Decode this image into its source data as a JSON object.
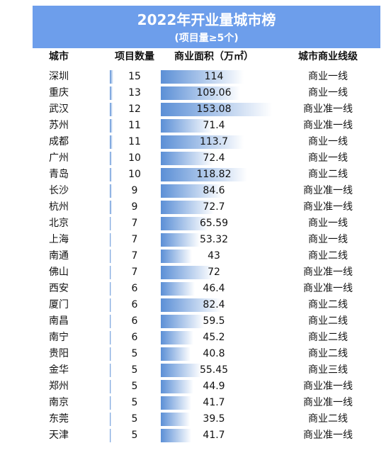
{
  "header": {
    "title": "2022年开业量城市榜",
    "subtitle": "(项目量≥5个)"
  },
  "table": {
    "columns": [
      "城市",
      "项目数量",
      "商业面积（万㎡）",
      "城市商业线级"
    ],
    "rows": [
      [
        "深圳",
        15,
        114,
        "商业一线"
      ],
      [
        "重庆",
        13,
        109.06,
        "商业一线"
      ],
      [
        "武汉",
        12,
        153.08,
        "商业准一线"
      ],
      [
        "苏州",
        11,
        71.4,
        "商业准一线"
      ],
      [
        "成都",
        11,
        113.7,
        "商业一线"
      ],
      [
        "广州",
        10,
        72.4,
        "商业一线"
      ],
      [
        "青岛",
        10,
        118.82,
        "商业二线"
      ],
      [
        "长沙",
        9,
        84.6,
        "商业准一线"
      ],
      [
        "杭州",
        9,
        72.7,
        "商业准一线"
      ],
      [
        "北京",
        7,
        65.59,
        "商业一线"
      ],
      [
        "上海",
        7,
        53.32,
        "商业一线"
      ],
      [
        "南通",
        7,
        43,
        "商业二线"
      ],
      [
        "佛山",
        7,
        72,
        "商业准一线"
      ],
      [
        "西安",
        6,
        46.4,
        "商业准一线"
      ],
      [
        "厦门",
        6,
        82.4,
        "商业二线"
      ],
      [
        "南昌",
        6,
        59.5,
        "商业二线"
      ],
      [
        "南宁",
        6,
        45.2,
        "商业二线"
      ],
      [
        "贵阳",
        5,
        40.8,
        "商业二线"
      ],
      [
        "金华",
        5,
        55.45,
        "商业三线"
      ],
      [
        "郑州",
        5,
        44.9,
        "商业准一线"
      ],
      [
        "南京",
        5,
        41.7,
        "商业准一线"
      ],
      [
        "东莞",
        5,
        39.5,
        "商业二线"
      ],
      [
        "天津",
        5,
        41.7,
        "商业准一线"
      ]
    ]
  }
}
